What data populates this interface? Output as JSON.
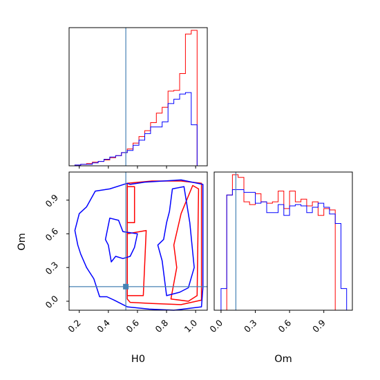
{
  "chart_data": {
    "type": "corner",
    "parameters": [
      "H0",
      "Om"
    ],
    "truth": {
      "H0": 0.52,
      "Om": 0.13
    },
    "colors": {
      "series_a": "#ff0000",
      "series_b": "#0000ff",
      "truth": "#4682b4",
      "frame": "#000000"
    },
    "panels": {
      "hist_H0": {
        "type": "histogram",
        "xlabel": "",
        "ylabel": "",
        "xlim": [
          0.13,
          1.08
        ],
        "yticks_visible": false,
        "bin_edges": [
          0.13,
          0.17,
          0.21,
          0.25,
          0.29,
          0.33,
          0.37,
          0.41,
          0.45,
          0.49,
          0.53,
          0.57,
          0.61,
          0.65,
          0.69,
          0.73,
          0.77,
          0.81,
          0.85,
          0.89,
          0.93,
          0.97,
          1.01,
          1.05
        ],
        "series": [
          {
            "values": [
              0,
              1,
              2,
              3,
              5,
              6,
              8,
              11,
              14,
              18,
              23,
              31,
              40,
              48,
              59,
              72,
              80,
              102,
              103,
              126,
              180,
              185,
              0
            ]
          },
          {
            "values": [
              0,
              1,
              2,
              2,
              4,
              6,
              9,
              12,
              14,
              18,
              21,
              28,
              35,
              44,
              53,
              53,
              60,
              85,
              91,
              98,
              100,
              56,
              0
            ]
          }
        ]
      },
      "hist_Om": {
        "type": "histogram",
        "xlabel": "Om",
        "ylabel": "",
        "xlim": [
          -0.06,
          1.15
        ],
        "xticks": [
          "0.0",
          "0.3",
          "0.6",
          "0.9"
        ],
        "yticks_visible": false,
        "bin_edges": [
          0.0,
          0.05,
          0.1,
          0.15,
          0.2,
          0.25,
          0.3,
          0.35,
          0.4,
          0.45,
          0.5,
          0.55,
          0.6,
          0.65,
          0.7,
          0.75,
          0.8,
          0.85,
          0.9,
          0.95,
          1.0,
          1.05,
          1.1
        ],
        "series": [
          {
            "values": [
              0,
              85,
              100,
              98,
              80,
              78,
              86,
              80,
              79,
              80,
              88,
              75,
              88,
              80,
              82,
              77,
              80,
              70,
              75,
              74,
              0,
              0
            ]
          },
          {
            "values": [
              16,
              85,
              89,
              89,
              87,
              87,
              79,
              80,
              72,
              72,
              78,
              70,
              77,
              78,
              77,
              72,
              76,
              79,
              76,
              71,
              64,
              16
            ]
          }
        ]
      },
      "contour_H0_Om": {
        "type": "contour",
        "xlabel": "H0",
        "ylabel": "Om",
        "xlim": [
          0.13,
          1.08
        ],
        "ylim": [
          -0.08,
          1.15
        ],
        "xticks": [
          "0.2",
          "0.4",
          "0.6",
          "0.8",
          "1.0"
        ],
        "yticks": [
          "0.0",
          "0.3",
          "0.6",
          "0.9"
        ],
        "series": [
          {
            "contours": [
              [
                [
                  0.53,
                  0.02
                ],
                [
                  0.53,
                  1.05
                ],
                [
                  0.7,
                  1.07
                ],
                [
                  0.9,
                  1.07
                ],
                [
                  1.04,
                  1.05
                ],
                [
                  1.04,
                  0.01
                ],
                [
                  0.9,
                  -0.03
                ],
                [
                  0.7,
                  -0.02
                ],
                [
                  0.55,
                  -0.01
                ],
                [
                  0.53,
                  0.02
                ]
              ],
              [
                [
                  0.83,
                  0.02
                ],
                [
                  0.87,
                  0.3
                ],
                [
                  0.85,
                  0.5
                ],
                [
                  0.9,
                  0.78
                ],
                [
                  0.98,
                  1.03
                ],
                [
                  1.02,
                  1.0
                ],
                [
                  1.01,
                  0.05
                ],
                [
                  0.95,
                  0.0
                ],
                [
                  0.83,
                  0.02
                ]
              ],
              [
                [
                  0.53,
                  0.6
                ],
                [
                  0.66,
                  0.63
                ],
                [
                  0.64,
                  0.05
                ],
                [
                  0.53,
                  0.05
                ],
                [
                  0.53,
                  0.6
                ]
              ],
              [
                [
                  0.53,
                  0.7
                ],
                [
                  0.58,
                  0.7
                ],
                [
                  0.58,
                  1.02
                ],
                [
                  0.53,
                  1.02
                ],
                [
                  0.53,
                  0.7
                ]
              ]
            ]
          },
          {
            "contours": [
              [
                [
                  0.34,
                  0.04
                ],
                [
                  0.39,
                  0.04
                ],
                [
                  0.44,
                  0.01
                ],
                [
                  0.53,
                  -0.05
                ],
                [
                  0.68,
                  -0.07
                ],
                [
                  0.85,
                  -0.08
                ],
                [
                  1.04,
                  -0.05
                ],
                [
                  1.05,
                  0.12
                ],
                [
                  1.05,
                  1.04
                ],
                [
                  0.9,
                  1.08
                ],
                [
                  0.65,
                  1.06
                ],
                [
                  0.55,
                  1.04
                ],
                [
                  0.53,
                  1.05
                ],
                [
                  0.41,
                  1.0
                ],
                [
                  0.31,
                  0.98
                ],
                [
                  0.28,
                  0.91
                ],
                [
                  0.25,
                  0.84
                ],
                [
                  0.2,
                  0.78
                ],
                [
                  0.17,
                  0.63
                ],
                [
                  0.19,
                  0.5
                ],
                [
                  0.21,
                  0.42
                ],
                [
                  0.25,
                  0.3
                ],
                [
                  0.3,
                  0.2
                ],
                [
                  0.34,
                  0.04
                ]
              ],
              [
                [
                  0.8,
                  0.05
                ],
                [
                  0.89,
                  0.08
                ],
                [
                  0.95,
                  0.12
                ],
                [
                  0.99,
                  0.3
                ],
                [
                  0.96,
                  0.7
                ],
                [
                  0.92,
                  1.02
                ],
                [
                  0.84,
                  1.0
                ],
                [
                  0.82,
                  0.8
                ],
                [
                  0.8,
                  0.7
                ],
                [
                  0.78,
                  0.55
                ],
                [
                  0.74,
                  0.5
                ],
                [
                  0.77,
                  0.36
                ],
                [
                  0.8,
                  0.05
                ]
              ],
              [
                [
                  0.41,
                  0.74
                ],
                [
                  0.47,
                  0.72
                ],
                [
                  0.5,
                  0.62
                ],
                [
                  0.6,
                  0.6
                ],
                [
                  0.58,
                  0.48
                ],
                [
                  0.55,
                  0.4
                ],
                [
                  0.5,
                  0.38
                ],
                [
                  0.45,
                  0.4
                ],
                [
                  0.42,
                  0.35
                ],
                [
                  0.4,
                  0.5
                ],
                [
                  0.38,
                  0.55
                ],
                [
                  0.41,
                  0.74
                ]
              ]
            ]
          }
        ]
      }
    }
  }
}
